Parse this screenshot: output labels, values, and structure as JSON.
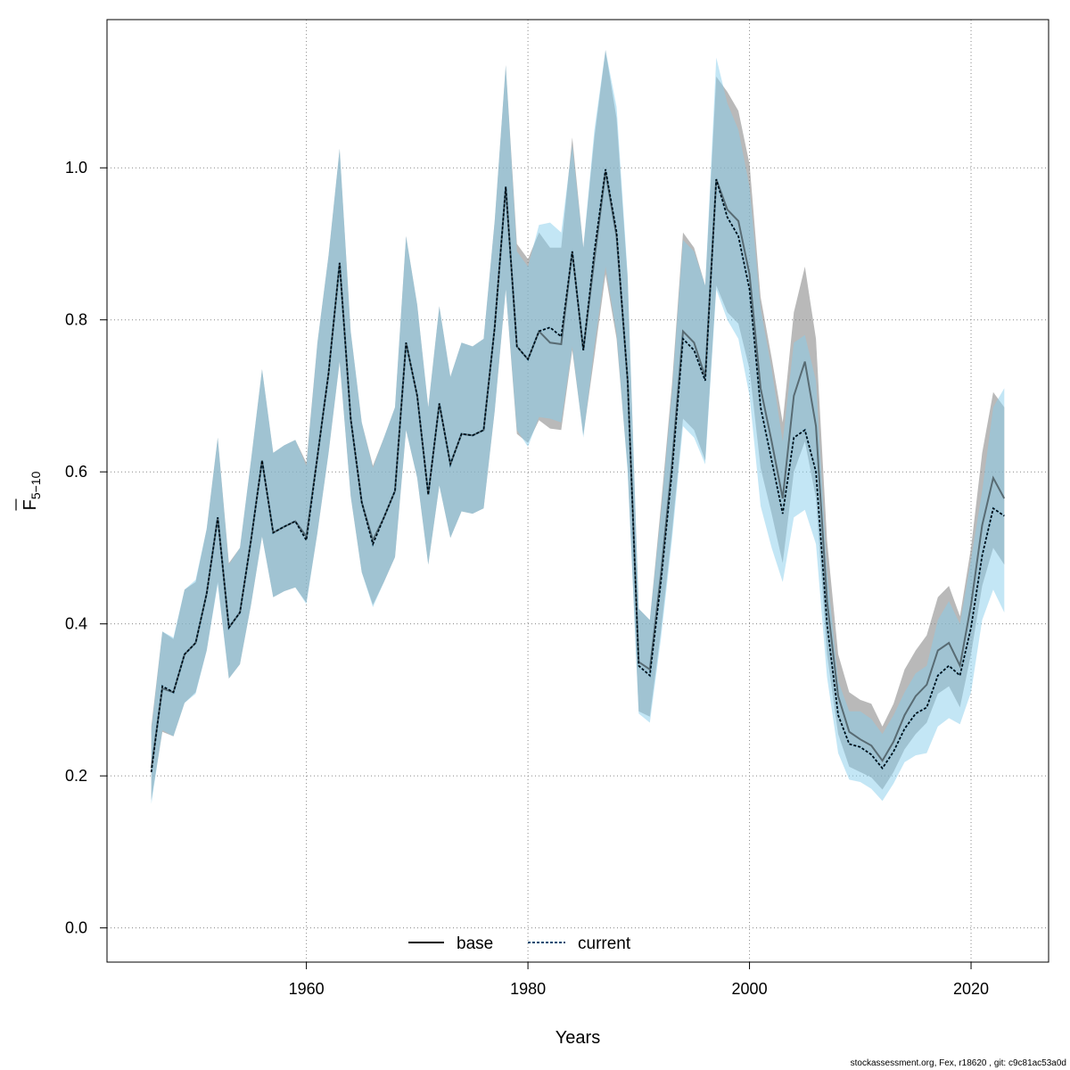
{
  "chart_data": {
    "type": "line",
    "xlabel": "Years",
    "ylabel": {
      "main": "F",
      "sub": "5−10"
    },
    "xlim": [
      1942,
      2027
    ],
    "ylim": [
      -0.045,
      1.195
    ],
    "xticks": [
      1960,
      1980,
      2000,
      2020
    ],
    "yticks": [
      0.0,
      0.2,
      0.4,
      0.6,
      0.8,
      1.0
    ],
    "ytick_labels": [
      "0.0",
      "0.2",
      "0.4",
      "0.6",
      "0.8",
      "1.0"
    ],
    "grid": true,
    "legend_position": "bottom-center",
    "colors": {
      "base_line": "#000000",
      "base_band": "rgba(128,128,128,0.55)",
      "current_line": "#0a4d73",
      "current_band": "rgba(135,206,235,0.5)",
      "grid": "#888888"
    },
    "x": [
      1946,
      1947,
      1948,
      1949,
      1950,
      1951,
      1952,
      1953,
      1954,
      1955,
      1956,
      1957,
      1958,
      1959,
      1960,
      1961,
      1962,
      1963,
      1964,
      1965,
      1966,
      1967,
      1968,
      1969,
      1970,
      1971,
      1972,
      1973,
      1974,
      1975,
      1976,
      1977,
      1978,
      1979,
      1980,
      1981,
      1982,
      1983,
      1984,
      1985,
      1986,
      1987,
      1988,
      1989,
      1990,
      1991,
      1992,
      1993,
      1994,
      1995,
      1996,
      1997,
      1998,
      1999,
      2000,
      2001,
      2002,
      2003,
      2004,
      2005,
      2006,
      2007,
      2008,
      2009,
      2010,
      2011,
      2012,
      2013,
      2014,
      2015,
      2016,
      2017,
      2018,
      2019,
      2020,
      2021,
      2022,
      2023
    ],
    "series": [
      {
        "name": "base",
        "values": [
          0.21,
          0.315,
          0.31,
          0.36,
          0.375,
          0.44,
          0.54,
          0.395,
          0.415,
          0.51,
          0.615,
          0.52,
          0.528,
          0.535,
          0.515,
          0.62,
          0.73,
          0.875,
          0.67,
          0.56,
          0.51,
          0.54,
          0.575,
          0.77,
          0.7,
          0.57,
          0.69,
          0.61,
          0.65,
          0.648,
          0.655,
          0.79,
          0.975,
          0.765,
          0.748,
          0.785,
          0.77,
          0.768,
          0.89,
          0.76,
          0.88,
          0.995,
          0.91,
          0.72,
          0.35,
          0.34,
          0.465,
          0.61,
          0.785,
          0.77,
          0.725,
          0.985,
          0.945,
          0.93,
          0.86,
          0.71,
          0.64,
          0.565,
          0.7,
          0.745,
          0.66,
          0.43,
          0.305,
          0.258,
          0.248,
          0.24,
          0.22,
          0.245,
          0.28,
          0.305,
          0.32,
          0.365,
          0.375,
          0.345,
          0.425,
          0.53,
          0.592,
          0.565
        ],
        "lower": [
          0.168,
          0.258,
          0.252,
          0.296,
          0.31,
          0.365,
          0.455,
          0.328,
          0.347,
          0.425,
          0.515,
          0.435,
          0.443,
          0.448,
          0.428,
          0.52,
          0.625,
          0.745,
          0.568,
          0.468,
          0.425,
          0.455,
          0.488,
          0.655,
          0.592,
          0.478,
          0.582,
          0.513,
          0.548,
          0.545,
          0.552,
          0.68,
          0.84,
          0.65,
          0.638,
          0.668,
          0.657,
          0.655,
          0.76,
          0.648,
          0.752,
          0.86,
          0.775,
          0.605,
          0.285,
          0.278,
          0.39,
          0.52,
          0.67,
          0.655,
          0.615,
          0.845,
          0.81,
          0.795,
          0.735,
          0.605,
          0.545,
          0.48,
          0.6,
          0.64,
          0.565,
          0.36,
          0.255,
          0.212,
          0.205,
          0.198,
          0.182,
          0.205,
          0.235,
          0.255,
          0.27,
          0.308,
          0.318,
          0.29,
          0.36,
          0.45,
          0.5,
          0.478
        ],
        "upper": [
          0.265,
          0.39,
          0.38,
          0.445,
          0.455,
          0.525,
          0.645,
          0.48,
          0.5,
          0.615,
          0.735,
          0.625,
          0.635,
          0.642,
          0.612,
          0.77,
          0.885,
          1.025,
          0.785,
          0.665,
          0.608,
          0.645,
          0.685,
          0.91,
          0.82,
          0.685,
          0.818,
          0.725,
          0.77,
          0.765,
          0.775,
          0.93,
          1.135,
          0.9,
          0.88,
          0.915,
          0.895,
          0.895,
          1.04,
          0.895,
          1.04,
          1.155,
          1.065,
          0.855,
          0.42,
          0.405,
          0.555,
          0.715,
          0.915,
          0.895,
          0.845,
          1.12,
          1.1,
          1.075,
          1.005,
          0.83,
          0.75,
          0.665,
          0.81,
          0.87,
          0.775,
          0.51,
          0.36,
          0.31,
          0.3,
          0.295,
          0.265,
          0.295,
          0.34,
          0.365,
          0.385,
          0.435,
          0.45,
          0.41,
          0.5,
          0.625,
          0.705,
          0.685
        ]
      },
      {
        "name": "current",
        "values": [
          0.205,
          0.318,
          0.31,
          0.36,
          0.375,
          0.44,
          0.54,
          0.395,
          0.415,
          0.51,
          0.615,
          0.52,
          0.528,
          0.535,
          0.51,
          0.62,
          0.73,
          0.875,
          0.67,
          0.56,
          0.505,
          0.54,
          0.575,
          0.77,
          0.7,
          0.57,
          0.69,
          0.61,
          0.65,
          0.648,
          0.655,
          0.79,
          0.975,
          0.765,
          0.748,
          0.785,
          0.79,
          0.778,
          0.89,
          0.76,
          0.89,
          0.998,
          0.915,
          0.72,
          0.345,
          0.332,
          0.455,
          0.6,
          0.775,
          0.76,
          0.72,
          0.985,
          0.935,
          0.91,
          0.84,
          0.685,
          0.615,
          0.545,
          0.645,
          0.655,
          0.6,
          0.4,
          0.28,
          0.242,
          0.238,
          0.228,
          0.21,
          0.232,
          0.262,
          0.282,
          0.29,
          0.332,
          0.345,
          0.332,
          0.395,
          0.49,
          0.552,
          0.542
        ],
        "lower": [
          0.163,
          0.26,
          0.252,
          0.296,
          0.308,
          0.365,
          0.452,
          0.328,
          0.347,
          0.425,
          0.515,
          0.435,
          0.443,
          0.448,
          0.426,
          0.52,
          0.625,
          0.745,
          0.568,
          0.468,
          0.422,
          0.455,
          0.488,
          0.655,
          0.592,
          0.478,
          0.582,
          0.513,
          0.548,
          0.545,
          0.552,
          0.68,
          0.84,
          0.655,
          0.633,
          0.672,
          0.67,
          0.665,
          0.765,
          0.645,
          0.765,
          0.87,
          0.782,
          0.6,
          0.282,
          0.27,
          0.38,
          0.51,
          0.66,
          0.645,
          0.61,
          0.84,
          0.8,
          0.775,
          0.7,
          0.555,
          0.5,
          0.455,
          0.54,
          0.55,
          0.505,
          0.33,
          0.23,
          0.195,
          0.192,
          0.183,
          0.167,
          0.19,
          0.218,
          0.227,
          0.23,
          0.265,
          0.276,
          0.268,
          0.31,
          0.405,
          0.445,
          0.415
        ],
        "upper": [
          0.26,
          0.39,
          0.382,
          0.445,
          0.458,
          0.525,
          0.645,
          0.478,
          0.5,
          0.615,
          0.735,
          0.625,
          0.635,
          0.642,
          0.608,
          0.77,
          0.885,
          1.025,
          0.785,
          0.665,
          0.605,
          0.645,
          0.685,
          0.91,
          0.82,
          0.685,
          0.818,
          0.725,
          0.77,
          0.765,
          0.775,
          0.93,
          1.135,
          0.89,
          0.87,
          0.925,
          0.928,
          0.915,
          1.03,
          0.895,
          1.05,
          1.155,
          1.08,
          0.86,
          0.42,
          0.405,
          0.545,
          0.705,
          0.905,
          0.89,
          0.845,
          1.145,
          1.085,
          1.05,
          0.975,
          0.815,
          0.735,
          0.64,
          0.77,
          0.78,
          0.72,
          0.47,
          0.325,
          0.285,
          0.285,
          0.275,
          0.255,
          0.28,
          0.31,
          0.335,
          0.345,
          0.405,
          0.43,
          0.4,
          0.485,
          0.575,
          0.685,
          0.71
        ]
      }
    ]
  },
  "footer": "stockassessment.org, Fex, r18620 , git: c9c81ac53a0d"
}
